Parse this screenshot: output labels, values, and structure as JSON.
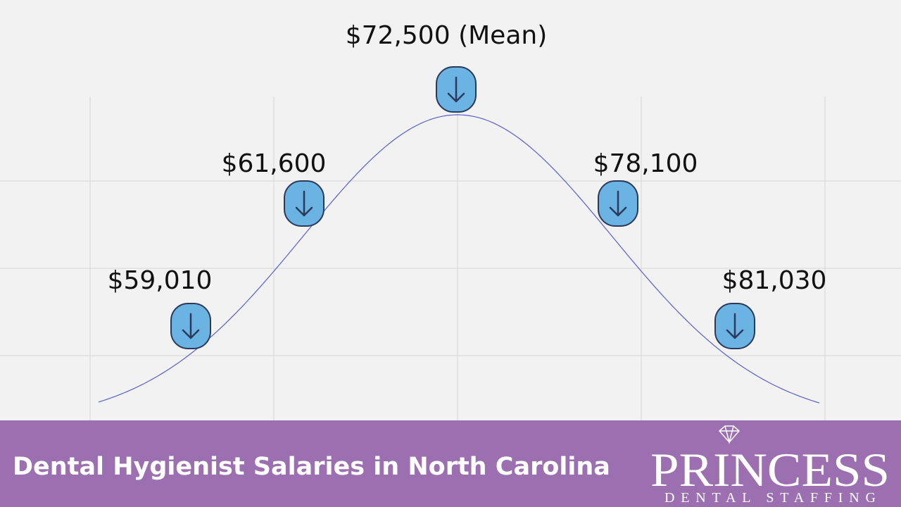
{
  "markers": [
    {
      "label": "$59,010"
    },
    {
      "label": "$61,600"
    },
    {
      "label": "$72,500 (Mean)"
    },
    {
      "label": "$78,100"
    },
    {
      "label": "$81,030"
    }
  ],
  "footer": {
    "title": "Dental Hygienist Salaries in North Carolina",
    "logo": {
      "name": "PRINCESS",
      "tagline": "DENTAL STAFFING"
    }
  }
}
